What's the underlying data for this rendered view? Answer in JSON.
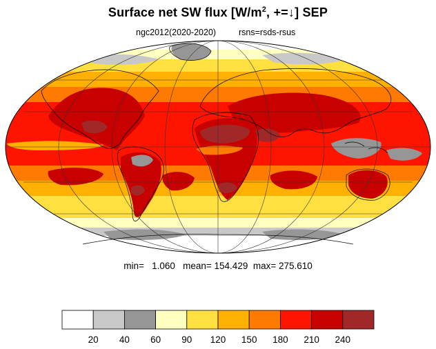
{
  "title": {
    "main": "Surface net SW flux [W/m",
    "sup": "2",
    "rest": ", +=↓]  SEP"
  },
  "subtitle": {
    "left": "ngc2012(2020-2020)",
    "right": "rsns=rsds-rsus"
  },
  "stats": {
    "text": "min=   1.060   mean= 154.429  max= 275.610"
  },
  "colorbar": {
    "colors": [
      "#ffffff",
      "#c8c8c8",
      "#969696",
      "#ffffc0",
      "#ffe040",
      "#ffb000",
      "#ff7a00",
      "#ff1400",
      "#c80000",
      "#a02828"
    ],
    "labels": [
      "20",
      "40",
      "60",
      "90",
      "120",
      "150",
      "180",
      "210",
      "240"
    ]
  },
  "map": {
    "projection": "mollweide",
    "palette": {
      "white": "#ffffff",
      "light_gray": "#c8c8c8",
      "gray": "#969696",
      "pale_yellow": "#ffffc0",
      "yellow": "#ffe040",
      "orange": "#ffb000",
      "dark_orange": "#ff7a00",
      "red": "#ff1400",
      "dark_red": "#c80000",
      "brown_red": "#a02828"
    }
  }
}
